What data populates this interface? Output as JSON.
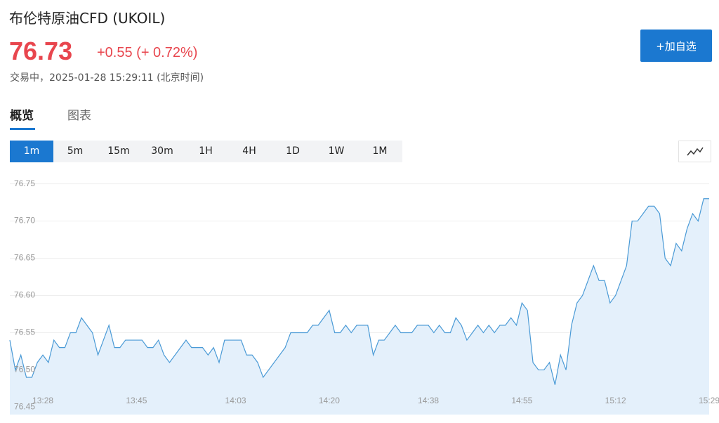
{
  "header": {
    "title": "布伦特原油CFD (UKOIL)",
    "price": "76.73",
    "change": "+0.55 (+ 0.72%)",
    "status": "交易中，2025-01-28 15:29:11 (北京时间)",
    "button": "+加自选"
  },
  "tabs": [
    "概览",
    "图表"
  ],
  "intervals": [
    "1m",
    "5m",
    "15m",
    "30m",
    "1H",
    "4H",
    "1D",
    "1W",
    "1M"
  ],
  "chart_data": {
    "type": "area",
    "categories": [
      null,
      null,
      null,
      null,
      null,
      null,
      "13:28",
      null,
      null,
      null,
      null,
      null,
      null,
      null,
      null,
      null,
      null,
      null,
      null,
      null,
      null,
      null,
      null,
      "13:45",
      null,
      null,
      null,
      null,
      null,
      null,
      null,
      null,
      null,
      null,
      null,
      null,
      null,
      null,
      null,
      null,
      null,
      "14:03",
      null,
      null,
      null,
      null,
      null,
      null,
      null,
      null,
      null,
      null,
      null,
      null,
      null,
      null,
      null,
      null,
      "14:20",
      null,
      null,
      null,
      null,
      null,
      null,
      null,
      null,
      null,
      null,
      null,
      null,
      null,
      null,
      null,
      null,
      null,
      "14:38",
      null,
      null,
      null,
      null,
      null,
      null,
      null,
      null,
      null,
      null,
      null,
      null,
      null,
      null,
      null,
      null,
      "14:55",
      null,
      null,
      null,
      null,
      null,
      null,
      null,
      null,
      null,
      null,
      null,
      null,
      null,
      null,
      null,
      null,
      "15:12",
      null,
      null,
      null,
      null,
      null,
      null,
      null,
      null,
      null,
      null,
      null,
      null,
      null,
      null,
      null,
      null,
      "15:29"
    ],
    "values": [
      76.54,
      76.5,
      76.52,
      76.49,
      76.49,
      76.51,
      76.52,
      76.51,
      76.54,
      76.53,
      76.53,
      76.55,
      76.55,
      76.57,
      76.56,
      76.55,
      76.52,
      76.54,
      76.56,
      76.53,
      76.53,
      76.54,
      76.54,
      76.54,
      76.54,
      76.53,
      76.53,
      76.54,
      76.52,
      76.51,
      76.52,
      76.53,
      76.54,
      76.53,
      76.53,
      76.53,
      76.52,
      76.53,
      76.51,
      76.54,
      76.54,
      76.54,
      76.54,
      76.52,
      76.52,
      76.51,
      76.49,
      76.5,
      76.51,
      76.52,
      76.53,
      76.55,
      76.55,
      76.55,
      76.55,
      76.56,
      76.56,
      76.57,
      76.58,
      76.55,
      76.55,
      76.56,
      76.55,
      76.56,
      76.56,
      76.56,
      76.52,
      76.54,
      76.54,
      76.55,
      76.56,
      76.55,
      76.55,
      76.55,
      76.56,
      76.56,
      76.56,
      76.55,
      76.56,
      76.55,
      76.55,
      76.57,
      76.56,
      76.54,
      76.55,
      76.56,
      76.55,
      76.56,
      76.55,
      76.56,
      76.56,
      76.57,
      76.56,
      76.59,
      76.58,
      76.51,
      76.5,
      76.5,
      76.51,
      76.48,
      76.52,
      76.5,
      76.56,
      76.59,
      76.6,
      76.62,
      76.64,
      76.62,
      76.62,
      76.59,
      76.6,
      76.62,
      76.64,
      76.7,
      76.7,
      76.71,
      76.72,
      76.72,
      76.71,
      76.65,
      76.64,
      76.67,
      76.66,
      76.69,
      76.71,
      76.7,
      76.73,
      76.73
    ],
    "color": "#4a9ad6",
    "fill_color": "#e4f0fb",
    "ylim": [
      76.44,
      76.76
    ],
    "yticks": [
      76.45,
      {
        "value": 76.5,
        "label": "76.50"
      },
      76.55,
      {
        "value": 76.6,
        "label": "76.60"
      },
      76.65,
      {
        "value": 76.7,
        "label": "76.70"
      },
      76.75
    ],
    "grid": true
  }
}
